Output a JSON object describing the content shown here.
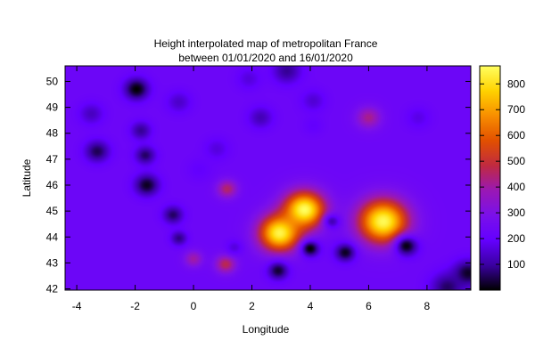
{
  "chart_data": {
    "type": "heatmap",
    "title_lines": [
      "Height interpolated map of metropolitan France",
      "between 01/01/2020 and 16/01/2020"
    ],
    "xlabel": "Longitude",
    "ylabel": "Latitude",
    "xlim": [
      -4.4,
      9.5
    ],
    "ylim": [
      41.95,
      50.6
    ],
    "xticks": [
      -4,
      -2,
      0,
      2,
      4,
      6,
      8
    ],
    "yticks": [
      42,
      43,
      44,
      45,
      46,
      47,
      48,
      49,
      50
    ],
    "colorbar": {
      "range": [
        0,
        870
      ],
      "ticks": [
        100,
        200,
        300,
        400,
        500,
        600,
        700,
        800
      ],
      "palette": [
        "#000000",
        "#3a00a0",
        "#6400ff",
        "#7a10ea",
        "#9a18b4",
        "#c02a40",
        "#e25000",
        "#f88e00",
        "#ffd200",
        "#ffff60"
      ]
    },
    "background_value": 230,
    "blobs": [
      {
        "x": 3.8,
        "y": 45.05,
        "value": 870,
        "spread": 0.5
      },
      {
        "x": 2.95,
        "y": 44.15,
        "value": 850,
        "spread": 0.5
      },
      {
        "x": 6.5,
        "y": 44.6,
        "value": 860,
        "spread": 0.6
      },
      {
        "x": 1.15,
        "y": 45.85,
        "value": 450,
        "spread": 0.25
      },
      {
        "x": 1.1,
        "y": 42.95,
        "value": 470,
        "spread": 0.25
      },
      {
        "x": 0.0,
        "y": 43.15,
        "value": 400,
        "spread": 0.22
      },
      {
        "x": 6.0,
        "y": 48.6,
        "value": 420,
        "spread": 0.3
      },
      {
        "x": -1.95,
        "y": 49.7,
        "value": 0,
        "spread": 0.3
      },
      {
        "x": -3.3,
        "y": 47.3,
        "value": 50,
        "spread": 0.3
      },
      {
        "x": -1.6,
        "y": 46.0,
        "value": 20,
        "spread": 0.3
      },
      {
        "x": -1.65,
        "y": 47.15,
        "value": 60,
        "spread": 0.25
      },
      {
        "x": -1.8,
        "y": 48.1,
        "value": 90,
        "spread": 0.25
      },
      {
        "x": -3.5,
        "y": 48.75,
        "value": 130,
        "spread": 0.3
      },
      {
        "x": -0.7,
        "y": 44.85,
        "value": 60,
        "spread": 0.25
      },
      {
        "x": -0.5,
        "y": 43.95,
        "value": 80,
        "spread": 0.2
      },
      {
        "x": 2.9,
        "y": 42.7,
        "value": 30,
        "spread": 0.25
      },
      {
        "x": 4.0,
        "y": 43.55,
        "value": 0,
        "spread": 0.22
      },
      {
        "x": 5.2,
        "y": 43.4,
        "value": 20,
        "spread": 0.25
      },
      {
        "x": 4.75,
        "y": 44.6,
        "value": 120,
        "spread": 0.2
      },
      {
        "x": 7.3,
        "y": 43.65,
        "value": 10,
        "spread": 0.28
      },
      {
        "x": 9.4,
        "y": 42.6,
        "value": 20,
        "spread": 0.35
      },
      {
        "x": 8.7,
        "y": 42.05,
        "value": 60,
        "spread": 0.4
      },
      {
        "x": 3.2,
        "y": 50.4,
        "value": 90,
        "spread": 0.35
      },
      {
        "x": 2.3,
        "y": 48.6,
        "value": 120,
        "spread": 0.3
      },
      {
        "x": 4.1,
        "y": 49.25,
        "value": 150,
        "spread": 0.3
      },
      {
        "x": -0.5,
        "y": 49.2,
        "value": 140,
        "spread": 0.3
      },
      {
        "x": 1.9,
        "y": 50.1,
        "value": 160,
        "spread": 0.3
      },
      {
        "x": 0.8,
        "y": 47.4,
        "value": 160,
        "spread": 0.3
      },
      {
        "x": 7.7,
        "y": 48.6,
        "value": 170,
        "spread": 0.3
      },
      {
        "x": 1.4,
        "y": 43.6,
        "value": 160,
        "spread": 0.2
      },
      {
        "x": 4.1,
        "y": 48.3,
        "value": 190,
        "spread": 0.25
      },
      {
        "x": 0.2,
        "y": 46.6,
        "value": 190,
        "spread": 0.3
      }
    ]
  }
}
